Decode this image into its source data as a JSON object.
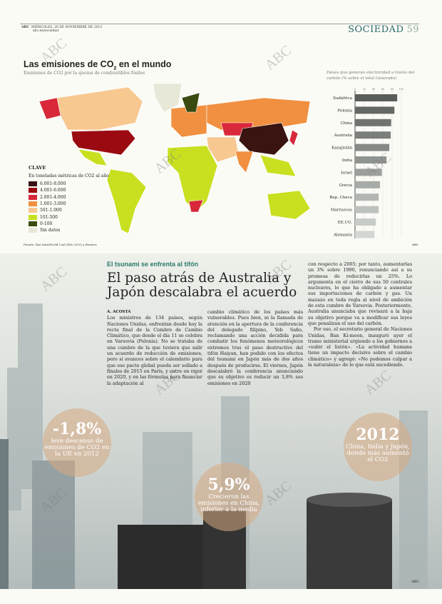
{
  "header": {
    "masthead": "ABC",
    "date": "MIÉRCOLES, 20 DE NOVIEMBRE DE 2013",
    "url": "abc.es/sociedad",
    "section": "SOCIEDAD",
    "page": "59"
  },
  "map": {
    "title": "Las emisiones de CO",
    "title_sub": "2",
    "title_end": " en el mundo",
    "subtitle": "Emisiones de CO2 por la quema de combustibles fósiles",
    "legend": {
      "title": "CLAVE",
      "subtitle": "En toneladas métricas de CO2 al año",
      "items": [
        {
          "label": "6.001-8.000",
          "color": "#3a1410"
        },
        {
          "label": "4.001-6.000",
          "color": "#9a0a10"
        },
        {
          "label": "2.001-4.000",
          "color": "#d8283a"
        },
        {
          "label": "1.001-3.000",
          "color": "#f09040"
        },
        {
          "label": "501-1.000",
          "color": "#f7c890"
        },
        {
          "label": "101-500",
          "color": "#c8e020"
        },
        {
          "label": "0-100",
          "color": "#3a4a10"
        },
        {
          "label": "Sin datos",
          "color": "#e8e8d8"
        }
      ]
    },
    "source": "Fuente: Rae data/World Coal (IEA 2010) y Reuters",
    "credit": "ABC"
  },
  "chart_data": {
    "type": "bar",
    "orientation": "horizontal",
    "title": "Países que generan electricidad a través del carbón (% sobre el total Generado)",
    "categories": [
      "Sudáfrica",
      "Polonia",
      "China",
      "Australia",
      "Kazajistán",
      "India",
      "Israel",
      "Grecia",
      "Rep. Checa",
      "Marruecos",
      "EE.UU.",
      "Alemania"
    ],
    "values": [
      91,
      85,
      78,
      77,
      74,
      68,
      58,
      54,
      51,
      51,
      45,
      42
    ],
    "xticks": [
      "0",
      "20",
      "40",
      "60",
      "80",
      "100"
    ],
    "xlim": [
      0,
      100
    ],
    "grid": true
  },
  "article": {
    "kicker": "El tsunami se enfrenta al tifón",
    "headline": "El paso atrás de Australia y Japón descalabra el acuerdo",
    "byline": "A. ACOSTA",
    "col1": "Los ministros de 134 países, según Naciones Unidas, enfrentan desde hoy la recta final de la Cumbre de Cambio Climático, que desde el día 11 se celebra en Varsovia (Polonia). No se trataba de una cumbre de la que tuviera que salir un acuerdo de reducción de emisiones, pero sí avances sobre el calendario para que ese pacto global pueda ser sellado a finales de 2015 en París, y entre en vigor en 2020, y en las fórmulas para financiar la adaptación al",
    "col2": "cambio climático de los países más vulnerables. Pues bien, ni la llamada de atención en la apertura de la conferencia del delegado filipino, Yeb Saño, reclamando una acción decidida para combatir los fenómenos meteorológicos extremos tras el paso destructivo del tifón Haiyan, han podido con los efectos del tsunami en Japón más de dos años después de producirse. El viernes, Japón descalabró la conferencia anunciando que su objetivo es reducir un 3,8% sus emisiones en 2020",
    "col3a": "con respecto a 2005; por tanto, aumentarlas un 3% sobre 1990, renunciando así a su promesa de reducirlas un 25%. Lo argumenta en el cierre de sus 50 centrales nucleares, lo que ha obligado a aumentar sus importaciones de carbón y gas. Un mazazo en toda regla al nivel de ambición de esta cumbre de Varsovia. Posteriormente, Australia anunciaba que revisará a la baja su objetivo porque va a modificar sus leyes que penalizan el uso del carbón.",
    "col3b": "Por eso, el secretario general de Naciones Unidas, Ban Ki-moon, inauguró ayer el tramo ministerial urgiendo a los gobiernos a «subir el listón». «La actividad humana tiene un impacto decisivo sobre el cambio climático» y agregó: «No podemos culpar a la naturaleza» de lo que está sucediendo."
  },
  "callouts": [
    {
      "value": "-1,8%",
      "text": "leve descenso de emisiones de CO2 en la UE en 2012"
    },
    {
      "value": "5,9%",
      "text": "Crecieron las emisiones en China, inferior a la media"
    },
    {
      "value": "2012",
      "text": "China, India y Japón, donde más aumentó el CO2"
    }
  ],
  "watermark": "ABC",
  "photo_credit": "ABC"
}
